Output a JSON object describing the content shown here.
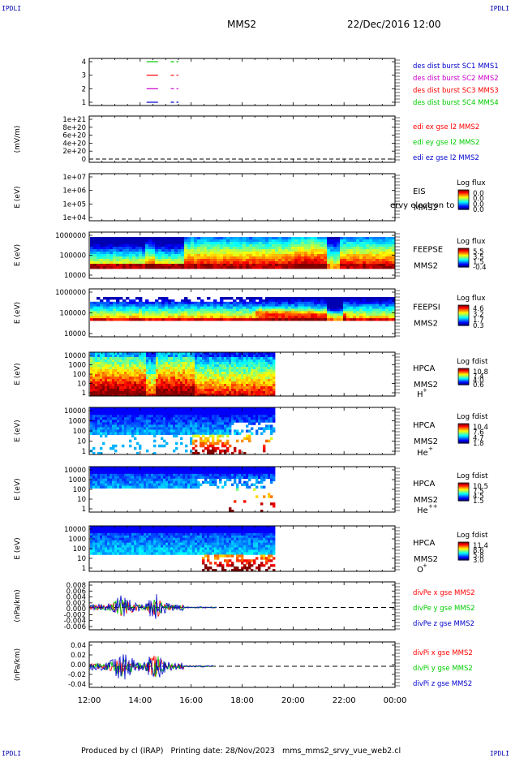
{
  "header": {
    "corner_left": "IPDLI",
    "corner_right": "IPDLI",
    "title": "MMS2",
    "date": "22/Dec/2016 12:00"
  },
  "footer": {
    "corner_left": "IPDLI",
    "corner_right": "IPDLI",
    "text": "Produced by cl (IRAP)   Printing date: 28/Nov/2023   mms_mms2_srvy_vue_web2.cl"
  },
  "colors": {
    "bg": "#ffffff",
    "axis": "#000000",
    "red": "#ff0000",
    "green": "#00cc00",
    "blue": "#0000cc",
    "magenta": "#cc00cc",
    "grid_dash": "#000000"
  },
  "chart_data": [
    {
      "id": "burst",
      "type": "line",
      "yticks": [
        "4",
        "3",
        "2",
        "1"
      ],
      "legend": [
        {
          "text": "des dist burst SC1 MMS1",
          "color": "#0000cc"
        },
        {
          "text": "des dist burst SC2 MMS2",
          "color": "#cc00cc"
        },
        {
          "text": "des dist burst SC3 MMS3",
          "color": "#ff0000"
        },
        {
          "text": "des dist burst SC4 MMS4",
          "color": "#00cc00"
        }
      ]
    },
    {
      "id": "edi",
      "type": "line",
      "ylabel": "(mV/m)",
      "yticks": [
        "1e+21",
        "8e+20",
        "6e+20",
        "4e+20",
        "2e+20",
        "0"
      ],
      "legend": [
        {
          "text": "edi ex gse l2 MMS2",
          "color": "#ff0000"
        },
        {
          "text": "edi ey gse l2 MMS2",
          "color": "#00cc00"
        },
        {
          "text": "edi ez gse l2 MMS2",
          "color": "#0000cc"
        }
      ]
    },
    {
      "id": "eis",
      "type": "heatmap",
      "ylabel": "E (eV)",
      "yticks": [
        "1e+07",
        "1e+06",
        "1e+05",
        "1e+04"
      ],
      "label1": "EIS",
      "label2": "MMS2",
      "overlay": "ervy electron to",
      "cb_title": "Log flux",
      "cb_ticks": [
        "0.0",
        "0.0",
        "0.0",
        "0.0"
      ]
    },
    {
      "id": "feepse",
      "type": "heatmap",
      "ylabel": "E (eV)",
      "yticks": [
        "1000000",
        "100000",
        "10000"
      ],
      "label1": "FEEPSE",
      "label2": "MMS2",
      "cb_title": "Log flux",
      "cb_ticks": [
        "5.5",
        "3.5",
        "1.5",
        "-0.4"
      ]
    },
    {
      "id": "feepsi",
      "type": "heatmap",
      "ylabel": "E (eV)",
      "yticks": [
        "1000000",
        "100000",
        "10000"
      ],
      "label1": "FEEPSI",
      "label2": "MMS2",
      "cb_title": "Log flux",
      "cb_ticks": [
        "4.6",
        "3.2",
        "1.7",
        "0.3"
      ]
    },
    {
      "id": "hpca_h",
      "type": "heatmap",
      "ylabel": "E (eV)",
      "yticks": [
        "10000",
        "1000",
        "100",
        "10",
        "1"
      ],
      "label1": "HPCA",
      "label2": "MMS2",
      "species": "H",
      "sup": "+",
      "cb_title": "Log fdist",
      "cb_ticks": [
        "10.8",
        "7.4",
        "4.0",
        "0.6"
      ]
    },
    {
      "id": "hpca_he",
      "type": "heatmap",
      "ylabel": "E (eV)",
      "yticks": [
        "10000",
        "1000",
        "100",
        "10",
        "1"
      ],
      "label1": "HPCA",
      "label2": "MMS2",
      "species": "He",
      "sup": "+",
      "cb_title": "Log fdist",
      "cb_ticks": [
        "10.4",
        "7.6",
        "4.7",
        "1.8"
      ]
    },
    {
      "id": "hpca_hepp",
      "type": "heatmap",
      "ylabel": "E (eV)",
      "yticks": [
        "10000",
        "1000",
        "100",
        "10",
        "1"
      ],
      "label1": "HPCA",
      "label2": "MMS2",
      "species": "He",
      "sup": "++",
      "cb_title": "Log fdist",
      "cb_ticks": [
        "10.5",
        "7.5",
        "4.5",
        "1.5"
      ]
    },
    {
      "id": "hpca_o",
      "type": "heatmap",
      "ylabel": "E (eV)",
      "yticks": [
        "10000",
        "1000",
        "100",
        "10",
        "1"
      ],
      "label1": "HPCA",
      "label2": "MMS2",
      "species": "O",
      "sup": "+",
      "cb_title": "Log fdist",
      "cb_ticks": [
        "11.4",
        "8.6",
        "5.8",
        "3.0"
      ]
    },
    {
      "id": "divpe",
      "type": "line",
      "ylabel": "(nPa/km)",
      "yticks": [
        "0.008",
        "0.006",
        "0.004",
        "0.002",
        "0.000",
        "-0.002",
        "-0.004",
        "-0.006"
      ],
      "legend": [
        {
          "text": "divPe x gse MMS2",
          "color": "#ff0000"
        },
        {
          "text": "divPe y gse MMS2",
          "color": "#00cc00"
        },
        {
          "text": "divPe z gse MMS2",
          "color": "#0000cc"
        }
      ]
    },
    {
      "id": "divpi",
      "type": "line",
      "ylabel": "(nPa/km)",
      "yticks": [
        "0.04",
        "0.02",
        "0.00",
        "-0.02",
        "-0.04"
      ],
      "legend": [
        {
          "text": "divPi x gse MMS2",
          "color": "#ff0000"
        },
        {
          "text": "divPi y gse MMS2",
          "color": "#00cc00"
        },
        {
          "text": "divPi z gse MMS2",
          "color": "#0000cc"
        }
      ]
    }
  ],
  "x_axis": {
    "ticks": [
      "12:00",
      "14:00",
      "16:00",
      "18:00",
      "20:00",
      "22:00",
      "00:00"
    ]
  }
}
